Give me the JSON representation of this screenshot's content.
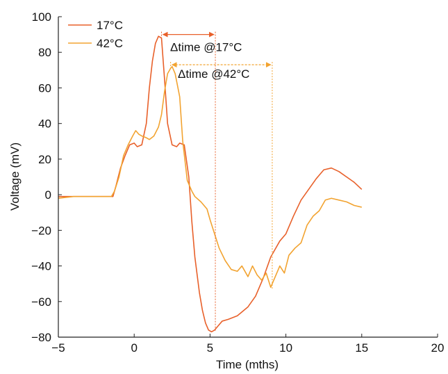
{
  "chart_data": {
    "type": "line",
    "xlabel": "Time (mths)",
    "ylabel": "Voltage (mV)",
    "xlim": [
      -5,
      20
    ],
    "ylim": [
      -80,
      100
    ],
    "xticks": [
      -5,
      0,
      5,
      10,
      15,
      20
    ],
    "yticks": [
      -80,
      -60,
      -40,
      -20,
      0,
      20,
      40,
      60,
      80,
      100
    ],
    "x_tick_labels": [
      "−5",
      "0",
      "5",
      "10",
      "15",
      "20"
    ],
    "y_tick_labels": [
      "−80",
      "−60",
      "−40",
      "−20",
      "0",
      "20",
      "40",
      "60",
      "80",
      "100"
    ],
    "grid": false,
    "legend_position": "top-left",
    "series": [
      {
        "name": "17°C",
        "color": "#e8602a",
        "x": [
          -5,
          -4,
          -3,
          -2,
          -1.4,
          -1.2,
          -0.9,
          -0.6,
          -0.3,
          0,
          0.2,
          0.5,
          0.8,
          1.0,
          1.2,
          1.4,
          1.6,
          1.8,
          2.0,
          2.2,
          2.5,
          2.8,
          3.0,
          3.3,
          3.6,
          3.8,
          4.0,
          4.3,
          4.5,
          4.7,
          4.9,
          5.1,
          5.3,
          5.5,
          5.8,
          6.2,
          6.8,
          7.5,
          8.0,
          8.5,
          9.0,
          9.6,
          10.0,
          10.5,
          11.0,
          11.5,
          12.0,
          12.5,
          13.0,
          13.5,
          14.0,
          14.5,
          15.0
        ],
        "y": [
          -1,
          -1,
          -1,
          -1,
          -1,
          5,
          15,
          22,
          28,
          29,
          27,
          28,
          40,
          60,
          75,
          85,
          89,
          88,
          65,
          40,
          28,
          27,
          29,
          28,
          10,
          -15,
          -35,
          -55,
          -65,
          -72,
          -76,
          -77,
          -76,
          -74,
          -71,
          -70,
          -68,
          -63,
          -57,
          -47,
          -35,
          -26,
          -22,
          -12,
          -3,
          3,
          9,
          14,
          15,
          13,
          10,
          7,
          3
        ]
      },
      {
        "name": "42°C",
        "color": "#f2a330",
        "x": [
          -5,
          -4,
          -3,
          -2,
          -1.5,
          -1.3,
          -1.0,
          -0.7,
          -0.4,
          -0.1,
          0.1,
          0.3,
          0.5,
          0.8,
          1.0,
          1.3,
          1.6,
          1.8,
          2.0,
          2.2,
          2.4,
          2.5,
          2.7,
          3.0,
          3.2,
          3.5,
          3.8,
          4.0,
          4.4,
          4.8,
          5.0,
          5.3,
          5.6,
          6.0,
          6.4,
          6.8,
          7.1,
          7.5,
          7.8,
          8.1,
          8.4,
          8.7,
          9.0,
          9.3,
          9.6,
          9.9,
          10.2,
          10.6,
          11.0,
          11.4,
          11.8,
          12.2,
          12.6,
          13.0,
          13.5,
          14.0,
          14.5,
          15.0
        ],
        "y": [
          -2,
          -1,
          -1,
          -1,
          -1,
          2,
          10,
          22,
          28,
          33,
          36,
          34,
          33,
          32,
          31,
          33,
          38,
          45,
          58,
          68,
          71,
          72,
          68,
          55,
          30,
          8,
          2,
          -1,
          -4,
          -8,
          -14,
          -22,
          -30,
          -37,
          -42,
          -43,
          -40,
          -46,
          -40,
          -45,
          -48,
          -44,
          -52,
          -46,
          -40,
          -44,
          -34,
          -30,
          -27,
          -17,
          -12,
          -9,
          -3,
          -2,
          -3,
          -4,
          -6,
          -7
        ]
      }
    ],
    "annotations": [
      {
        "label": "Δtime @17°C",
        "series": "17°C",
        "x_start": 1.8,
        "x_end": 5.35,
        "y": 90,
        "vline_bottom": -77
      },
      {
        "label": "Δtime @42°C",
        "series": "42°C",
        "x_start": 2.4,
        "x_end": 9.1,
        "y": 73,
        "vline_bottom": -53
      }
    ]
  }
}
